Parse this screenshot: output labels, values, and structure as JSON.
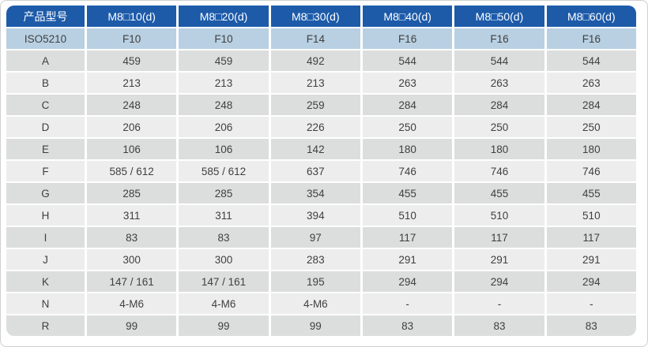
{
  "colors": {
    "header_bg": "#1d5ba9",
    "header_text": "#ffffff",
    "iso_row_bg": "#b8d0e2",
    "row_dark_bg": "#dcdddd",
    "row_light_bg": "#ededee",
    "body_text": "#404040",
    "frame_border": "#cfcfcf"
  },
  "table": {
    "header": [
      "产品型号",
      "M8□10(d)",
      "M8□20(d)",
      "M8□30(d)",
      "M8□40(d)",
      "M8□50(d)",
      "M8□60(d)"
    ],
    "rows": [
      {
        "label": "ISO5210",
        "values": [
          "F10",
          "F10",
          "F14",
          "F16",
          "F16",
          "F16"
        ]
      },
      {
        "label": "A",
        "values": [
          "459",
          "459",
          "492",
          "544",
          "544",
          "544"
        ]
      },
      {
        "label": "B",
        "values": [
          "213",
          "213",
          "213",
          "263",
          "263",
          "263"
        ]
      },
      {
        "label": "C",
        "values": [
          "248",
          "248",
          "259",
          "284",
          "284",
          "284"
        ]
      },
      {
        "label": "D",
        "values": [
          "206",
          "206",
          "226",
          "250",
          "250",
          "250"
        ]
      },
      {
        "label": "E",
        "values": [
          "106",
          "106",
          "142",
          "180",
          "180",
          "180"
        ]
      },
      {
        "label": "F",
        "values": [
          "585 / 612",
          "585 / 612",
          "637",
          "746",
          "746",
          "746"
        ]
      },
      {
        "label": "G",
        "values": [
          "285",
          "285",
          "354",
          "455",
          "455",
          "455"
        ]
      },
      {
        "label": "H",
        "values": [
          "311",
          "311",
          "394",
          "510",
          "510",
          "510"
        ]
      },
      {
        "label": "I",
        "values": [
          "83",
          "83",
          "97",
          "117",
          "117",
          "117"
        ]
      },
      {
        "label": "J",
        "values": [
          "300",
          "300",
          "283",
          "291",
          "291",
          "291"
        ]
      },
      {
        "label": "K",
        "values": [
          "147 / 161",
          "147 / 161",
          "195",
          "294",
          "294",
          "294"
        ]
      },
      {
        "label": "N",
        "values": [
          "4-M6",
          "4-M6",
          "4-M6",
          "-",
          "-",
          "-"
        ]
      },
      {
        "label": "R",
        "values": [
          "99",
          "99",
          "99",
          "83",
          "83",
          "83"
        ]
      }
    ]
  }
}
